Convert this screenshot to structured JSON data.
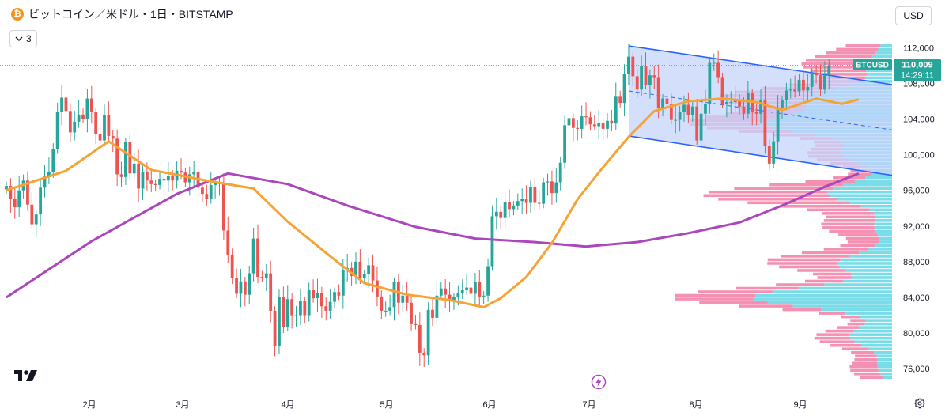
{
  "header": {
    "coin_glyph": "₿",
    "title": "ビットコイン／米ドル・1日・BITSTAMP"
  },
  "indicators_toggle": {
    "count": "3"
  },
  "currency_button": {
    "label": "USD"
  },
  "price_badge": {
    "symbol": "BTCUSD",
    "price": "110,009",
    "countdown": "14:29:11"
  },
  "colors": {
    "up": "#26a69a",
    "down": "#ef5350",
    "ma_short": "#f7a234",
    "ma_long": "#ab47bc",
    "channel": "#2962ff",
    "channel_fill": "#c5d4fb",
    "vp_up": "#4dd0e1",
    "vp_down": "#f06292"
  },
  "chart_data": {
    "type": "candlestick",
    "symbol": "BTCUSD",
    "exchange": "BITSTAMP",
    "interval": "1日",
    "currency": "USD",
    "last_price": 110009,
    "y_axis": {
      "ticks": [
        "112,000",
        "108,000",
        "104,000",
        "100,000",
        "96,000",
        "92,000",
        "88,000",
        "84,000",
        "80,000",
        "76,000"
      ],
      "ylim": [
        74000,
        113800
      ]
    },
    "x_axis": {
      "ticks": [
        "2月",
        "3月",
        "4月",
        "5月",
        "6月",
        "7月",
        "8月",
        "9月"
      ]
    },
    "candles_close": [
      96500,
      95000,
      94100,
      96000,
      97100,
      94400,
      92200,
      93300,
      96300,
      97600,
      98100,
      100600,
      104800,
      106400,
      104900,
      102500,
      103700,
      104500,
      104000,
      106300,
      104800,
      102300,
      101600,
      104400,
      102100,
      101800,
      97800,
      97500,
      101400,
      97900,
      99000,
      96200,
      98100,
      97100,
      96700,
      96600,
      97300,
      97100,
      97600,
      97100,
      98200,
      98000,
      96900,
      97800,
      98100,
      96300,
      95600,
      95000,
      96600,
      96800,
      96700,
      91500,
      88800,
      86200,
      84400,
      85800,
      84300,
      86700,
      90600,
      86300,
      86200,
      86700,
      82500,
      78500,
      84000,
      80700,
      83800,
      82000,
      82000,
      83600,
      82000,
      84800,
      83900,
      84500,
      83000,
      82500,
      83500,
      84600,
      84200,
      87100,
      87300,
      86400,
      88000,
      86200,
      86600,
      87600,
      85900,
      84100,
      82500,
      82500,
      82900,
      85700,
      83400,
      84200,
      83400,
      81000,
      80900,
      77800,
      77500,
      82600,
      81700,
      84200,
      85000,
      84300,
      83700,
      84000,
      84500,
      84800,
      85100,
      84400,
      85700,
      84100,
      84200,
      87500,
      93100,
      93600,
      92900,
      94700,
      93900,
      94300,
      94800,
      95000,
      94600,
      96400,
      94600,
      94500,
      96900,
      97000,
      95700,
      96900,
      99100,
      103300,
      104100,
      103000,
      102900,
      104300,
      104200,
      103400,
      103200,
      103600,
      102900,
      103800,
      103500,
      106500,
      105800,
      109100,
      111000,
      108800,
      107300,
      109900,
      107800,
      108900,
      108700,
      105200,
      106300,
      105700,
      103900,
      103900,
      104800,
      105600,
      104400,
      105400,
      101600,
      104600,
      105700,
      110300,
      110300,
      108700,
      105700,
      105900,
      105900,
      106100,
      105400,
      104600,
      106900,
      104800,
      104600,
      106100,
      101000,
      99000,
      101500,
      105300,
      106100,
      107200,
      107300,
      107100,
      108400,
      107200,
      107600,
      109200,
      108900,
      107300,
      108900,
      110009
    ],
    "ma_short": [
      [
        0,
        96000
      ],
      [
        14,
        98200
      ],
      [
        24,
        101500
      ],
      [
        34,
        98300
      ],
      [
        48,
        97000
      ],
      [
        58,
        96200
      ],
      [
        66,
        92500
      ],
      [
        76,
        88600
      ],
      [
        84,
        85600
      ],
      [
        94,
        84300
      ],
      [
        104,
        83700
      ],
      [
        112,
        82900
      ],
      [
        116,
        83900
      ],
      [
        122,
        86300
      ],
      [
        128,
        90100
      ],
      [
        134,
        95000
      ],
      [
        140,
        98600
      ],
      [
        146,
        102000
      ],
      [
        152,
        104900
      ],
      [
        160,
        106000
      ],
      [
        168,
        106300
      ],
      [
        176,
        105900
      ],
      [
        182,
        105000
      ],
      [
        190,
        106300
      ],
      [
        196,
        105700
      ],
      [
        200,
        106200
      ]
    ],
    "ma_long": [
      [
        0,
        84000
      ],
      [
        20,
        90300
      ],
      [
        40,
        95600
      ],
      [
        52,
        97900
      ],
      [
        66,
        96700
      ],
      [
        80,
        94300
      ],
      [
        96,
        91900
      ],
      [
        110,
        90600
      ],
      [
        124,
        90200
      ],
      [
        136,
        89700
      ],
      [
        148,
        90200
      ],
      [
        160,
        91200
      ],
      [
        172,
        92400
      ],
      [
        182,
        94300
      ],
      [
        192,
        96400
      ],
      [
        200,
        97900
      ]
    ],
    "channel": {
      "upper": [
        [
          146,
          112200
        ],
        [
          223,
          106800
        ]
      ],
      "lower": [
        [
          146,
          102100
        ],
        [
          223,
          96600
        ]
      ]
    },
    "volume_profile": "shown"
  }
}
